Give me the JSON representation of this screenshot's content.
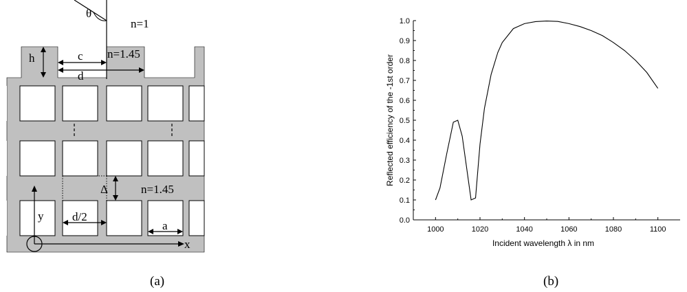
{
  "figure_a": {
    "panel_label": "(a)",
    "labels": {
      "theta": "θ",
      "n_top": "n=1",
      "n_grating": "n=1.45",
      "n_lower": "n=1.45",
      "h": "h",
      "c": "c",
      "d": "d",
      "delta": "Δ",
      "y": "y",
      "x": "x",
      "d_half": "d/2",
      "a": "a"
    },
    "colors": {
      "fill": "#c0c0c0",
      "hole": "#ffffff",
      "line": "#000000"
    }
  },
  "figure_b": {
    "panel_label": "(b)"
  },
  "chart_data": {
    "type": "line",
    "xlabel": "Incident wavelength λ in nm",
    "ylabel": "Reflected efficiency of the -1st order",
    "xlim": [
      990,
      1110
    ],
    "ylim": [
      0.0,
      1.0
    ],
    "xticks": [
      1000,
      1020,
      1040,
      1060,
      1080,
      1100
    ],
    "yticks": [
      0.0,
      0.1,
      0.2,
      0.3,
      0.4,
      0.5,
      0.6,
      0.7,
      0.8,
      0.9,
      1.0
    ],
    "ytick_labels": [
      "0.0",
      "0.1",
      "0.2",
      "0.3",
      "0.4",
      "0.5",
      "0.6",
      "0.7",
      "0.8",
      "0.9",
      "1.0"
    ],
    "series": [
      {
        "x": [
          1000,
          1002,
          1005,
          1008,
          1010,
          1012,
          1014,
          1016,
          1018,
          1020,
          1022,
          1025,
          1028,
          1030,
          1035,
          1040,
          1045,
          1050,
          1055,
          1060,
          1065,
          1070,
          1075,
          1080,
          1085,
          1090,
          1095,
          1100
        ],
        "y": [
          0.1,
          0.16,
          0.33,
          0.49,
          0.5,
          0.42,
          0.26,
          0.1,
          0.11,
          0.38,
          0.56,
          0.73,
          0.84,
          0.89,
          0.96,
          0.985,
          0.995,
          0.998,
          0.996,
          0.985,
          0.97,
          0.95,
          0.925,
          0.89,
          0.85,
          0.8,
          0.74,
          0.66
        ]
      }
    ],
    "grid": false,
    "color": "#000000"
  }
}
